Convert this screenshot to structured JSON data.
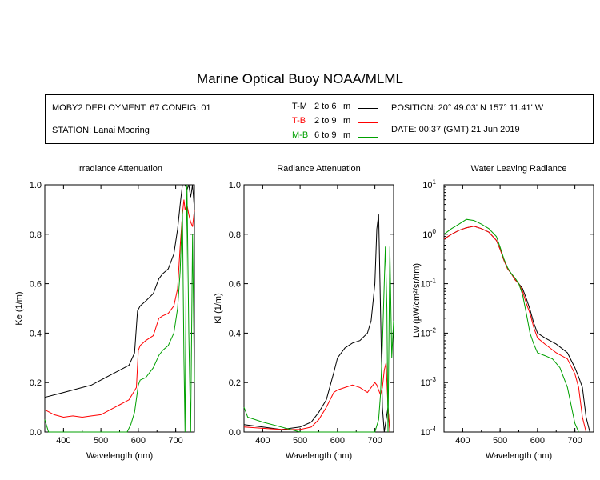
{
  "page": {
    "title": "Marine Optical Buoy NOAA/MLML"
  },
  "header": {
    "deployment": "MOBY2 DEPLOYMENT: 67 CONFIG: 01",
    "station": "STATION: Lanai Mooring",
    "position": "POSITION: 20° 49.03' N   157° 11.41' W",
    "date": "DATE: 00:37 (GMT) 21 Jun 2019",
    "legend": [
      {
        "code": "T-M",
        "range": "2 to 6",
        "unit": "m",
        "color": "#000000"
      },
      {
        "code": "T-B",
        "range": "2 to 9",
        "unit": "m",
        "color": "#ff0000"
      },
      {
        "code": "M-B",
        "range": "6 to 9",
        "unit": "m",
        "color": "#00a000"
      }
    ]
  },
  "chart_data": [
    {
      "type": "line",
      "title": "Irradiance Attenuation",
      "xlabel": "Wavelength (nm)",
      "ylabel": "Ke  (1/m)",
      "xlim": [
        350,
        750
      ],
      "ylim": [
        0,
        1
      ],
      "xticks": [
        "400",
        "500",
        "600",
        "700"
      ],
      "yticks": [
        "0.0",
        "0.2",
        "0.4",
        "0.6",
        "0.8",
        "1.0"
      ],
      "series": [
        {
          "name": "T-M",
          "color": "#000000",
          "x": [
            350,
            375,
            400,
            425,
            450,
            475,
            500,
            525,
            550,
            575,
            590,
            598,
            605,
            620,
            640,
            655,
            665,
            680,
            695,
            705,
            712,
            718,
            722,
            725,
            730,
            735,
            740,
            745,
            750
          ],
          "y": [
            0.14,
            0.15,
            0.16,
            0.17,
            0.18,
            0.19,
            0.21,
            0.23,
            0.25,
            0.27,
            0.32,
            0.49,
            0.51,
            0.53,
            0.56,
            0.62,
            0.64,
            0.66,
            0.72,
            0.82,
            0.92,
            1.0,
            1.0,
            1.0,
            0.98,
            1.0,
            0.95,
            1.0,
            0.9
          ]
        },
        {
          "name": "T-B",
          "color": "#ff0000",
          "x": [
            350,
            375,
            400,
            425,
            450,
            475,
            500,
            525,
            550,
            575,
            595,
            600,
            605,
            620,
            640,
            655,
            665,
            680,
            695,
            705,
            712,
            718,
            722,
            725,
            730,
            735,
            740,
            745,
            750
          ],
          "y": [
            0.09,
            0.07,
            0.06,
            0.065,
            0.06,
            0.065,
            0.07,
            0.09,
            0.11,
            0.13,
            0.18,
            0.33,
            0.35,
            0.37,
            0.39,
            0.46,
            0.47,
            0.48,
            0.51,
            0.58,
            0.75,
            0.88,
            0.94,
            0.9,
            0.92,
            0.88,
            0.85,
            0.83,
            0.9
          ]
        },
        {
          "name": "M-B",
          "color": "#00a000",
          "x": [
            350,
            360,
            365,
            570,
            580,
            590,
            600,
            605,
            620,
            640,
            655,
            665,
            680,
            695,
            705,
            712,
            718,
            722,
            725,
            728,
            730,
            735,
            740,
            745,
            750
          ],
          "y": [
            0.05,
            0.0,
            0.0,
            0.0,
            0.03,
            0.08,
            0.19,
            0.21,
            0.22,
            0.26,
            0.31,
            0.33,
            0.35,
            0.4,
            0.5,
            0.65,
            0.9,
            0.3,
            0.0,
            0.7,
            1.0,
            0.4,
            0.0,
            0.8,
            0.2
          ]
        }
      ]
    },
    {
      "type": "line",
      "title": "Radiance Attenuation",
      "xlabel": "Wavelength (nm)",
      "ylabel": "Kl  (1/m)",
      "xlim": [
        350,
        750
      ],
      "ylim": [
        0,
        1
      ],
      "xticks": [
        "400",
        "500",
        "600",
        "700"
      ],
      "yticks": [
        "0.0",
        "0.2",
        "0.4",
        "0.6",
        "0.8",
        "1.0"
      ],
      "series": [
        {
          "name": "T-M",
          "color": "#000000",
          "x": [
            350,
            400,
            450,
            500,
            530,
            550,
            570,
            590,
            600,
            620,
            640,
            660,
            680,
            690,
            700,
            705,
            710,
            715,
            720,
            725,
            730,
            735,
            740
          ],
          "y": [
            0.03,
            0.02,
            0.01,
            0.02,
            0.04,
            0.08,
            0.13,
            0.24,
            0.3,
            0.34,
            0.36,
            0.37,
            0.4,
            0.45,
            0.6,
            0.82,
            0.88,
            0.5,
            0.1,
            0.0,
            0.05,
            0.1,
            0.0
          ]
        },
        {
          "name": "T-B",
          "color": "#ff0000",
          "x": [
            350,
            400,
            450,
            500,
            530,
            550,
            570,
            590,
            600,
            620,
            640,
            660,
            680,
            690,
            700,
            705,
            710,
            715,
            720,
            725,
            730,
            735,
            740
          ],
          "y": [
            0.02,
            0.015,
            0.01,
            0.01,
            0.02,
            0.05,
            0.1,
            0.16,
            0.17,
            0.18,
            0.19,
            0.18,
            0.16,
            0.18,
            0.2,
            0.19,
            0.17,
            0.15,
            0.18,
            0.25,
            0.28,
            0.1,
            0.0
          ]
        },
        {
          "name": "M-B",
          "color": "#00a000",
          "x": [
            350,
            360,
            400,
            450,
            500,
            520,
            540,
            560,
            580,
            600,
            620,
            640,
            660,
            680,
            700,
            710,
            715,
            720,
            725,
            728,
            732,
            735,
            740,
            745,
            750
          ],
          "y": [
            0.1,
            0.06,
            0.04,
            0.02,
            0.0,
            0.0,
            0.0,
            0.0,
            0.0,
            0.0,
            0.0,
            0.0,
            0.0,
            0.0,
            0.0,
            0.05,
            0.15,
            0.35,
            0.6,
            0.75,
            0.5,
            0.0,
            0.75,
            0.3,
            0.45
          ]
        }
      ]
    },
    {
      "type": "line",
      "title": "Water Leaving Radiance",
      "xlabel": "Wavelength (nm)",
      "ylabel": "Lw  (µW/cm²/sr/nm)",
      "yscale": "log",
      "xlim": [
        350,
        750
      ],
      "ylim": [
        0.0001,
        10
      ],
      "xticks": [
        "400",
        "500",
        "600",
        "700"
      ],
      "yticks": [
        {
          "base": "10",
          "exp": "-4"
        },
        {
          "base": "10",
          "exp": "-3"
        },
        {
          "base": "10",
          "exp": "-2"
        },
        {
          "base": "10",
          "exp": "-1"
        },
        {
          "base": "10",
          "exp": "0"
        },
        {
          "base": "10",
          "exp": "1"
        }
      ],
      "series": [
        {
          "name": "T-M",
          "color": "#000000",
          "x": [
            350,
            370,
            390,
            410,
            430,
            450,
            470,
            490,
            500,
            510,
            520,
            530,
            540,
            550,
            560,
            570,
            580,
            590,
            600,
            620,
            650,
            680,
            700,
            710,
            720,
            730,
            740
          ],
          "y": [
            0.8,
            1.0,
            1.2,
            1.35,
            1.45,
            1.3,
            1.1,
            0.75,
            0.5,
            0.3,
            0.2,
            0.16,
            0.12,
            0.1,
            0.08,
            0.05,
            0.03,
            0.016,
            0.01,
            0.008,
            0.006,
            0.004,
            0.002,
            0.0013,
            0.0008,
            0.0002,
            0.0001
          ]
        },
        {
          "name": "T-B",
          "color": "#ff0000",
          "x": [
            350,
            370,
            390,
            410,
            430,
            450,
            470,
            490,
            500,
            510,
            520,
            530,
            540,
            550,
            560,
            570,
            580,
            590,
            600,
            620,
            650,
            680,
            700,
            710,
            720,
            730
          ],
          "y": [
            0.8,
            1.0,
            1.2,
            1.35,
            1.45,
            1.3,
            1.1,
            0.75,
            0.5,
            0.3,
            0.2,
            0.16,
            0.12,
            0.1,
            0.07,
            0.04,
            0.025,
            0.013,
            0.008,
            0.006,
            0.004,
            0.003,
            0.0015,
            0.0008,
            0.0002,
            0.0001
          ]
        },
        {
          "name": "M-B",
          "color": "#00a000",
          "x": [
            350,
            370,
            390,
            410,
            430,
            450,
            470,
            490,
            500,
            510,
            520,
            530,
            540,
            550,
            560,
            570,
            580,
            590,
            600,
            620,
            640,
            660,
            680,
            700,
            710
          ],
          "y": [
            1.0,
            1.3,
            1.6,
            2.0,
            1.9,
            1.6,
            1.3,
            0.9,
            0.55,
            0.32,
            0.21,
            0.16,
            0.13,
            0.1,
            0.06,
            0.025,
            0.01,
            0.006,
            0.004,
            0.0035,
            0.003,
            0.002,
            0.0008,
            0.00015,
            0.0001
          ]
        }
      ]
    }
  ]
}
